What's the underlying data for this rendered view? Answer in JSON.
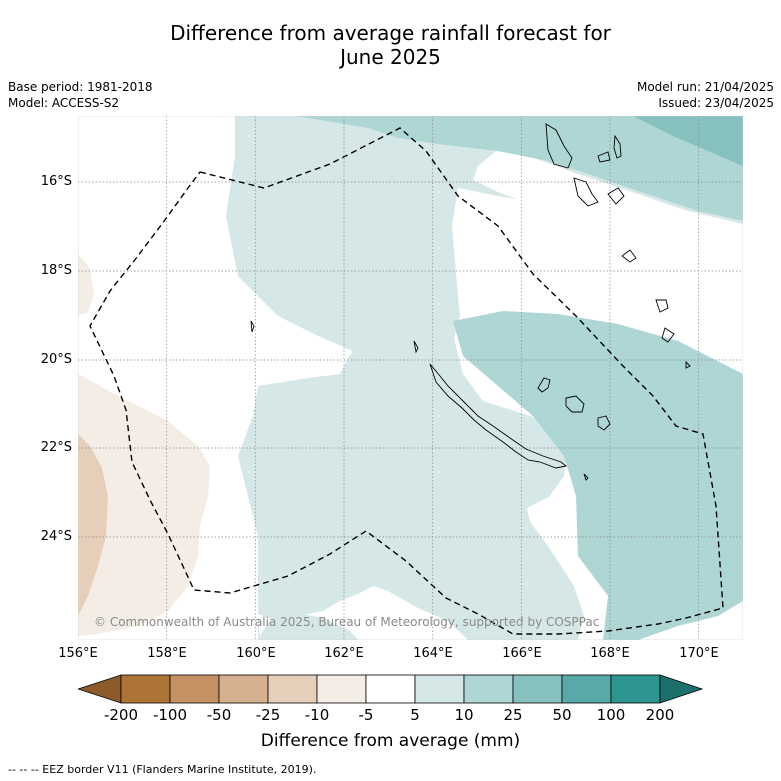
{
  "title": {
    "line1": "Difference from average rainfall forecast for",
    "line2": "June 2025"
  },
  "meta_left": {
    "base_period": "Base period: 1981-2018",
    "model": "Model: ACCESS-S2"
  },
  "meta_right": {
    "model_run": "Model run: 21/04/2025",
    "issued": "Issued: 23/04/2025"
  },
  "map": {
    "lon_range": [
      156,
      171
    ],
    "lat_range": [
      -26.0,
      -14.75
    ],
    "lat_ticks": [
      "16°S",
      "18°S",
      "20°S",
      "22°S",
      "24°S"
    ],
    "lon_ticks": [
      "156°E",
      "158°E",
      "160°E",
      "162°E",
      "164°E",
      "166°E",
      "168°E",
      "170°E"
    ],
    "copyright": "© Commonwealth of Australia 2025, Bureau of Meteorology, supported by COSPPac",
    "gridlines": true,
    "eez_style": "dashed"
  },
  "colorbar": {
    "tick_labels": [
      "-200",
      "-100",
      "-50",
      "-25",
      "-10",
      "-5",
      "5",
      "10",
      "25",
      "50",
      "100",
      "200"
    ],
    "colors": [
      "#8c5a2b",
      "#ad7438",
      "#c39163",
      "#d5b190",
      "#e6cfba",
      "#f3ede6",
      "#ffffff",
      "#d5e8e7",
      "#aed6d5",
      "#86c0bf",
      "#5aa9a9",
      "#2f9591",
      "#1c6f6b"
    ],
    "label": "Difference from average (mm)"
  },
  "footnote": "--  --  -- EEZ border V11 (Flanders Marine Institute, 2019)."
}
